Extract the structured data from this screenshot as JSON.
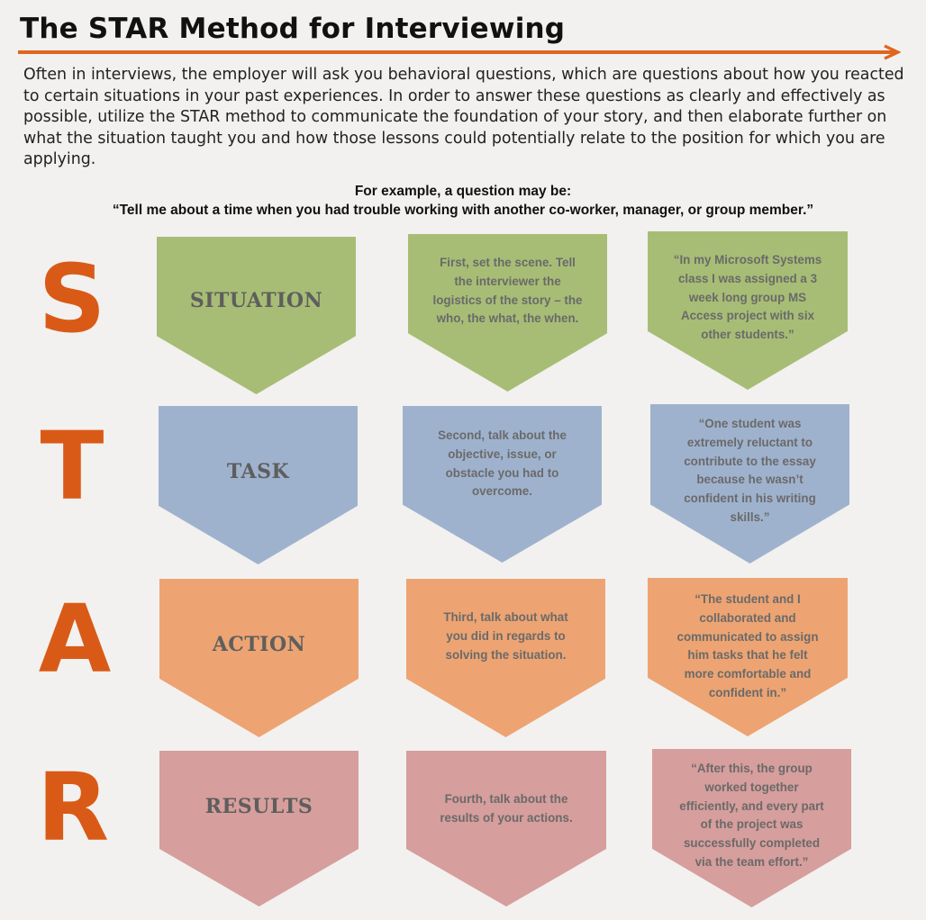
{
  "title": "The STAR Method for Interviewing",
  "intro": "Often in interviews, the employer will ask you behavioral questions, which are questions about how you reacted to certain situations in your past experiences. In order to answer these questions as clearly and effectively as possible, utilize the STAR method to communicate the foundation of your story, and then elaborate further on what the situation taught you and how those lessons could potentially relate to the position for which you are applying.",
  "example": {
    "lead": "For example, a question may be:",
    "question": "“Tell me about a time when you had trouble working with another co-worker, manager, or group member.”"
  },
  "colors": {
    "accent": "#d95a17",
    "situation": "#a7bd75",
    "task": "#9fb2cd",
    "action": "#eda472",
    "results": "#d69e9c"
  },
  "rows": [
    {
      "letter": "S",
      "label": "SITUATION",
      "description": [
        "First, set the scene. Tell",
        "the interviewer the",
        "logistics of the story – the",
        "who, the what, the when."
      ],
      "example": [
        "“In my Microsoft Systems",
        "class I was assigned a 3",
        "week long group MS",
        "Access project with six",
        "other students.”"
      ]
    },
    {
      "letter": "T",
      "label": "TASK",
      "description": [
        "Second, talk about the",
        "objective, issue, or",
        "obstacle you had to",
        "overcome."
      ],
      "example": [
        "“One student was",
        "extremely reluctant to",
        "contribute to the essay",
        "because he wasn’t",
        "confident in his writing",
        "skills.”"
      ]
    },
    {
      "letter": "A",
      "label": "ACTION",
      "description": [
        "Third, talk about what",
        "you did in regards to",
        "solving the situation."
      ],
      "example": [
        "“The student and I",
        "collaborated and",
        "communicated to assign",
        "him tasks that he felt",
        "more comfortable and",
        "confident in.”"
      ]
    },
    {
      "letter": "R",
      "label": "RESULTS",
      "description": [
        "Fourth, talk about the",
        "results of your actions."
      ],
      "example": [
        "“After this, the group",
        "worked together",
        "efficiently, and every part",
        "of the project was",
        "successfully completed",
        "via the team effort.”"
      ]
    }
  ]
}
